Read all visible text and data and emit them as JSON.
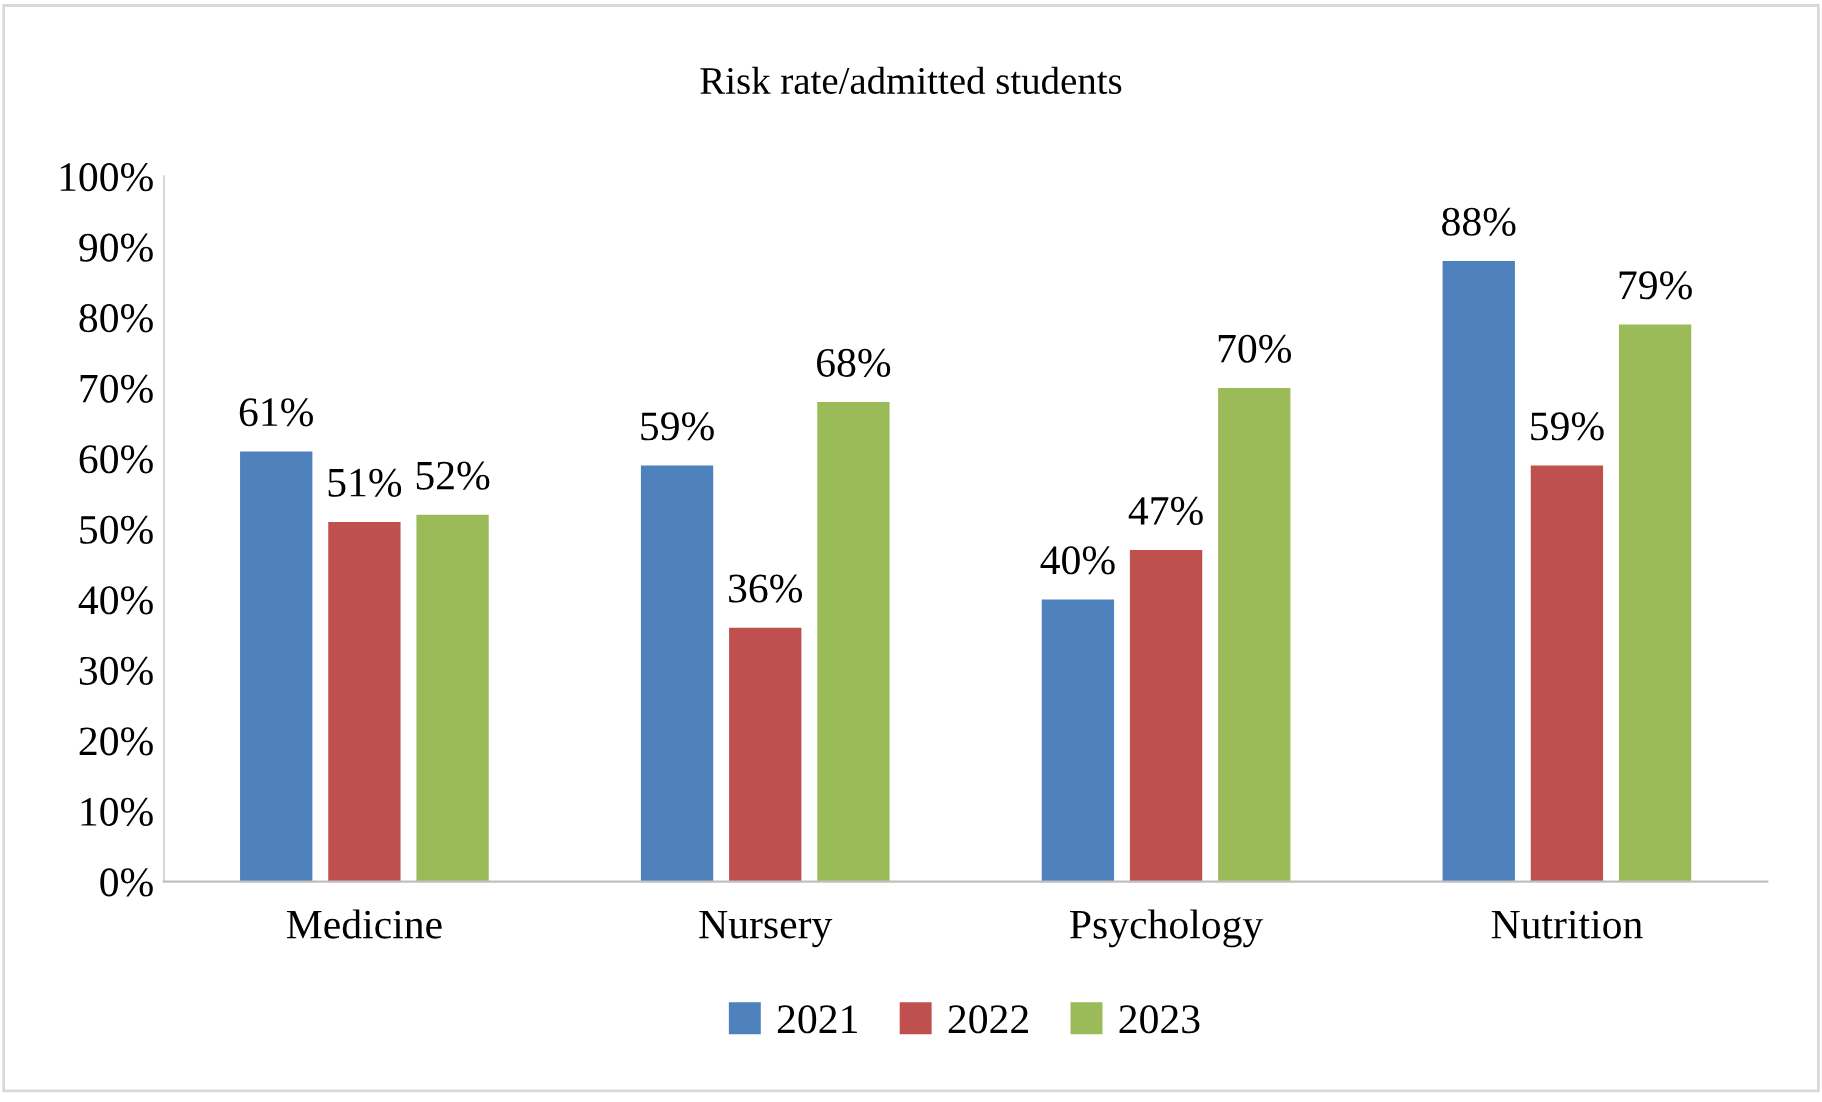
{
  "chart_data": {
    "type": "bar",
    "title": "Risk rate/admitted students",
    "categories": [
      "Medicine",
      "Nursery",
      "Psychology",
      "Nutrition"
    ],
    "series": [
      {
        "name": "2021",
        "color": "#4f81bd",
        "values": [
          61,
          59,
          40,
          88
        ],
        "value_labels": [
          "61%",
          "59%",
          "40%",
          "88%"
        ]
      },
      {
        "name": "2022",
        "color": "#c0504d",
        "values": [
          51,
          36,
          47,
          59
        ],
        "value_labels": [
          "51%",
          "36%",
          "47%",
          "59%"
        ]
      },
      {
        "name": "2023",
        "color": "#9bbb59",
        "values": [
          52,
          68,
          70,
          79
        ],
        "value_labels": [
          "52%",
          "68%",
          "70%",
          "79%"
        ]
      }
    ],
    "ylim": [
      0,
      100
    ],
    "yticks": [
      {
        "value": 0,
        "label": "0%"
      },
      {
        "value": 10,
        "label": "10%"
      },
      {
        "value": 20,
        "label": "20%"
      },
      {
        "value": 30,
        "label": "30%"
      },
      {
        "value": 40,
        "label": "40%"
      },
      {
        "value": 50,
        "label": "50%"
      },
      {
        "value": 60,
        "label": "60%"
      },
      {
        "value": 70,
        "label": "70%"
      },
      {
        "value": 80,
        "label": "80%"
      },
      {
        "value": 90,
        "label": "90%"
      },
      {
        "value": 100,
        "label": "100%"
      }
    ],
    "grid": false,
    "legend": "bottom"
  }
}
